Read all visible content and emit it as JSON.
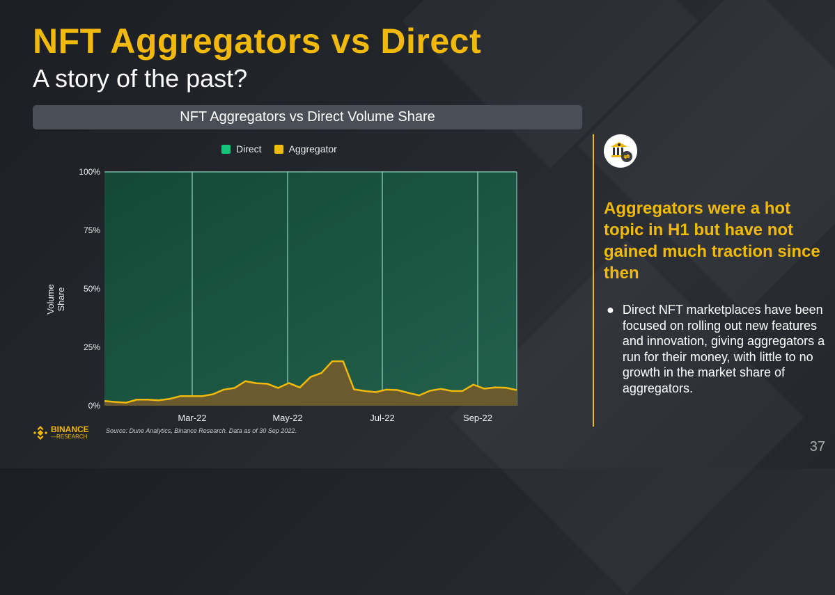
{
  "slide": {
    "title": "NFT Aggregators vs Direct",
    "subtitle": "A story of the past?",
    "page_number": "37"
  },
  "brand": {
    "logo_line1": "BINANCE",
    "logo_line2": "RESEARCH",
    "accent": "#f0b90b"
  },
  "chart_data": {
    "type": "area",
    "title": "NFT Aggregators vs Direct Volume Share",
    "ylabel": "Volume Share",
    "xlabel": "",
    "ylim": [
      0,
      100
    ],
    "yticks": [
      "0%",
      "25%",
      "50%",
      "75%",
      "100%"
    ],
    "xticks": [
      "Mar-22",
      "May-22",
      "Jul-22",
      "Sep-22"
    ],
    "legend": [
      "Direct",
      "Aggregator"
    ],
    "legend_placement": "top-center",
    "colors": {
      "Direct": "#17c47c",
      "Aggregator": "#f0b90b"
    },
    "note": "Stacked 100% area, weekly data Jan-22 to Sep-22",
    "series": [
      {
        "name": "Aggregator",
        "values": [
          2.0,
          1.6,
          1.3,
          2.6,
          2.6,
          2.3,
          2.9,
          4.1,
          4.1,
          4.1,
          4.9,
          6.9,
          7.6,
          10.5,
          9.6,
          9.4,
          7.6,
          9.7,
          7.8,
          12.3,
          14.0,
          19.0,
          19.0,
          7.0,
          6.3,
          5.8,
          6.9,
          6.7,
          5.5,
          4.4,
          6.4,
          7.2,
          6.3,
          6.3,
          9.0,
          7.3,
          7.8,
          7.7,
          6.7
        ]
      }
    ],
    "source": "Source: Dune Analytics, Binance Research. Data as of 30 Sep 2022."
  },
  "panel": {
    "headline": "Aggregators were a hot topic in H1 but have not gained much traction since then",
    "bullet": "Direct NFT marketplaces have been focused on rolling out new features and innovation, giving aggregators a run for their money, with little to no growth in the market share of aggregators.",
    "icon": "bank-exchange-icon"
  }
}
